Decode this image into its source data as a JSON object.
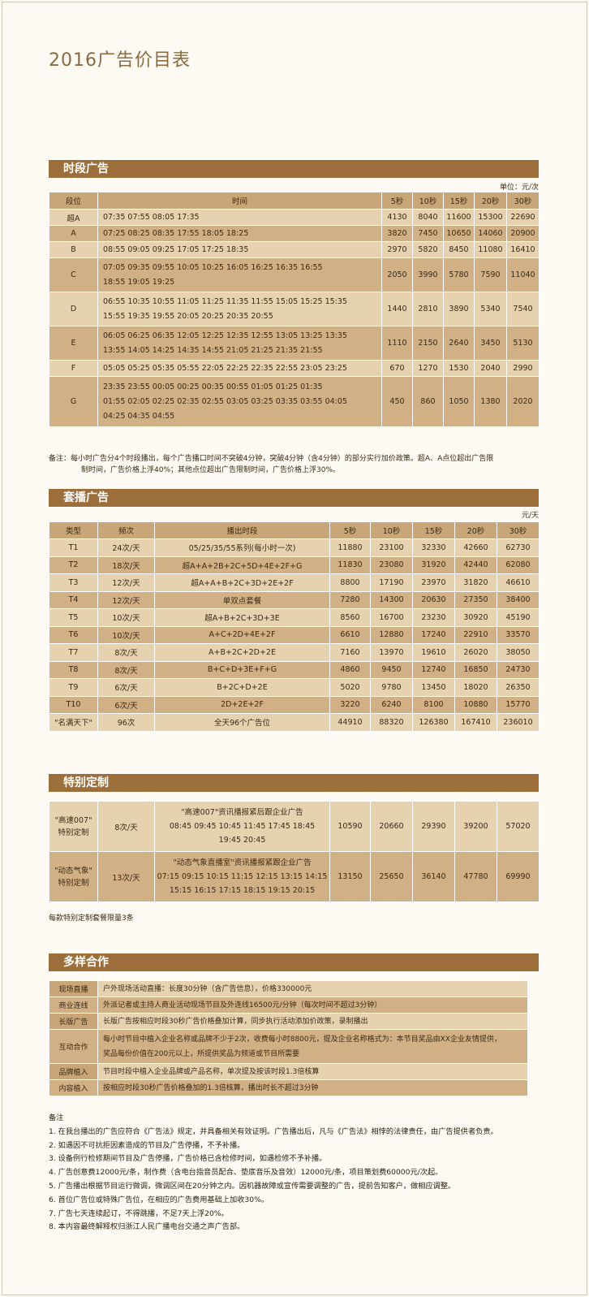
{
  "page_title": "2016广告价目表",
  "section1": {
    "title": "时段广告",
    "unit": "单位：元/次",
    "headers": [
      "段位",
      "时间",
      "5秒",
      "10秒",
      "15秒",
      "20秒",
      "30秒"
    ],
    "rows": [
      {
        "grade": "超A",
        "times": [
          "07:35 07:55 08:05 17:35"
        ],
        "prices": [
          "4130",
          "8040",
          "11600",
          "15300",
          "22690"
        ]
      },
      {
        "grade": "A",
        "times": [
          "07:25 08:25 08:35 17:55 18:05 18:25"
        ],
        "prices": [
          "3820",
          "7450",
          "10650",
          "14060",
          "20900"
        ]
      },
      {
        "grade": "B",
        "times": [
          "08:55 09:05 09:25 17:05 17:25 18:35"
        ],
        "prices": [
          "2970",
          "5820",
          "8450",
          "11080",
          "16410"
        ]
      },
      {
        "grade": "C",
        "times": [
          "07:05 09:35 09:55 10:05 10:25 16:05 16:25 16:35 16:55",
          "18:55 19:05 19:25"
        ],
        "prices": [
          "2050",
          "3990",
          "5780",
          "7590",
          "11040"
        ]
      },
      {
        "grade": "D",
        "times": [
          "06:55 10:35 10:55 11:05 11:25 11:35 11:55 15:05 15:25 15:35",
          "15:55 19:35 19:55 20:05 20:25 20:35 20:55"
        ],
        "prices": [
          "1440",
          "2810",
          "3890",
          "5340",
          "7540"
        ]
      },
      {
        "grade": "E",
        "times": [
          "06:05 06:25 06:35 12:05 12:25 12:35 12:55 13:05 13:25 13:35",
          "13:55 14:05 14:25 14:35 14:55 21:05 21:25 21:35 21:55"
        ],
        "prices": [
          "1110",
          "2150",
          "2640",
          "3450",
          "5130"
        ]
      },
      {
        "grade": "F",
        "times": [
          "05:05 05:25 05:35 05:55 22:05 22:25 22:35 22:55 23:05 23:25"
        ],
        "prices": [
          "670",
          "1270",
          "1530",
          "2040",
          "2990"
        ]
      },
      {
        "grade": "G",
        "times": [
          "23:35 23:55 00:05 00:25 00:35 00:55 01:05 01:25 01:35",
          "01:55 02:05 02:25 02:35 02:55 03:05 03:25 03:35 03:55 04:05",
          "04:25 04:35 04:55"
        ],
        "prices": [
          "450",
          "860",
          "1050",
          "1380",
          "2020"
        ]
      }
    ],
    "note_line1": "备注：每小时广告分4个时段播出，每个广告播口时间不突破4分钟，突破4分钟（含4分钟）的部分实行加价政策。超A、A点位超出广告限",
    "note_line2": "制时间，广告价格上浮40%；其他点位超出广告限制时间，广告价格上浮30%。"
  },
  "section2": {
    "title": "套播广告",
    "unit": "元/天",
    "headers": [
      "类型",
      "频次",
      "播出时段",
      "5秒",
      "10秒",
      "15秒",
      "20秒",
      "30秒"
    ],
    "rows": [
      {
        "type": "T1",
        "freq": "24次/天",
        "slot": "05/25/35/55系列(每小时一次)",
        "prices": [
          "11880",
          "23100",
          "32330",
          "42660",
          "62730"
        ]
      },
      {
        "type": "T2",
        "freq": "18次/天",
        "slot": "超A+A+2B+2C+5D+4E+2F+G",
        "prices": [
          "11830",
          "23080",
          "31920",
          "42440",
          "62080"
        ]
      },
      {
        "type": "T3",
        "freq": "12次/天",
        "slot": "超A+A+B+2C+3D+2E+2F",
        "prices": [
          "8800",
          "17190",
          "23970",
          "31820",
          "46610"
        ]
      },
      {
        "type": "T4",
        "freq": "12次/天",
        "slot": "单双点套餐",
        "prices": [
          "7280",
          "14300",
          "20630",
          "27350",
          "38400"
        ]
      },
      {
        "type": "T5",
        "freq": "10次/天",
        "slot": "超A+B+2C+3D+3E",
        "prices": [
          "8560",
          "16700",
          "23230",
          "30920",
          "45190"
        ]
      },
      {
        "type": "T6",
        "freq": "10次/天",
        "slot": "A+C+2D+4E+2F",
        "prices": [
          "6610",
          "12880",
          "17240",
          "22910",
          "33570"
        ]
      },
      {
        "type": "T7",
        "freq": "8次/天",
        "slot": "A+B+2C+2D+2E",
        "prices": [
          "7160",
          "13970",
          "19610",
          "26020",
          "38050"
        ]
      },
      {
        "type": "T8",
        "freq": "8次/天",
        "slot": "B+C+D+3E+F+G",
        "prices": [
          "4860",
          "9450",
          "12740",
          "16850",
          "24730"
        ]
      },
      {
        "type": "T9",
        "freq": "6次/天",
        "slot": "B+2C+D+2E",
        "prices": [
          "5020",
          "9780",
          "13450",
          "18020",
          "26350"
        ]
      },
      {
        "type": "T10",
        "freq": "6次/天",
        "slot": "2D+2E+2F",
        "prices": [
          "3220",
          "6240",
          "8100",
          "10880",
          "15770"
        ]
      },
      {
        "type": "\"名满天下\"",
        "freq": "96次",
        "slot": "全天96个广告位",
        "prices": [
          "44910",
          "88320",
          "126380",
          "167410",
          "236010"
        ]
      }
    ]
  },
  "section3": {
    "title": "特别定制",
    "rows": [
      {
        "name": [
          "\"高速007\"",
          "特别定制"
        ],
        "freq": "8次/天",
        "desc": [
          "\"高速007\"资讯播报紧后跟企业广告",
          "08:45 09:45 10:45 11:45 17:45 18:45",
          "19:45 20:45"
        ],
        "prices": [
          "10590",
          "20660",
          "29390",
          "39200",
          "57020"
        ]
      },
      {
        "name": [
          "\"动态气象\"",
          "特别定制"
        ],
        "freq": "13次/天",
        "desc": [
          "\"动态气象直播室\"资讯播报紧跟企业广告",
          "07:15 09:15 10:15 11:15 12:15 13:15 14:15",
          "15:15 16:15 17:15 18:15 19:15 20:15"
        ],
        "prices": [
          "13150",
          "25650",
          "36140",
          "47780",
          "69990"
        ]
      }
    ],
    "note": "每款特别定制套餐限量3条"
  },
  "section4": {
    "title": "多样合作",
    "rows": [
      {
        "label": "现场直播",
        "text": [
          "户外现场活动直播：长度30分钟（含广告信息），价格330000元"
        ]
      },
      {
        "label": "商业连线",
        "text": [
          "外派记者或主持人商业活动现场节目及外连线16500元/分钟（每次时间不超过3分钟）"
        ]
      },
      {
        "label": "长版广告",
        "text": [
          "长版广告按相应时段30秒广告价格叠加计算，同步执行活动添加价政策，录制播出"
        ]
      },
      {
        "label": "互动合作",
        "text": [
          "每小时节目中植入企业名称或品牌不少于2次，收费每小时8800元，提及企业名称格式为：本节目奖品由XX企业友情提供，",
          "奖品每份价值在200元以上，所提供奖品为频道或节目所需要"
        ]
      },
      {
        "label": "品牌植入",
        "text": [
          "节目时段中植入企业品牌或产品名称，单次提及按该时段1.3倍核算"
        ]
      },
      {
        "label": "内容植入",
        "text": [
          "按相应时段30秒广告价格叠加的1.3倍核算，播出时长不超过3分钟"
        ]
      }
    ]
  },
  "notes": {
    "heading": "备注",
    "items": [
      "1. 在我台播出的广告应符合《广告法》规定，并具备相关有效证明。广告播出后，凡与《广告法》相悖的法律责任，由广告提供者负责。",
      "2. 如遇因不可抗拒因素造成的节目及广告停播，不予补播。",
      "3. 设备例行检修期间节目及广告停播，广告价格已含检修时间，如遇检修不予补播。",
      "4. 广告创意费12000元/条，制作费（含电台指音员配合、垫底音乐及音效）12000元/条，项目策划费60000元/次起。",
      "5. 广告播出根据节目运行微调，微调区间在20分钟之内。因机器故障或宣传需要调整的广告，提前告知客户，做相应调整。",
      "6. 首位广告位或特殊广告位，在相应的广告费用基础上加收30%。",
      "7. 广告七天连续起订，不得跳播，不足7天上浮20%。",
      "8. 本内容最终解释权归浙江人民广播电台交通之声广告部。"
    ]
  }
}
